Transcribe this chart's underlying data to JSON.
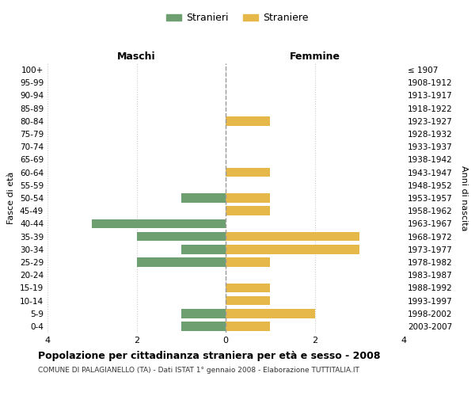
{
  "age_groups": [
    "100+",
    "95-99",
    "90-94",
    "85-89",
    "80-84",
    "75-79",
    "70-74",
    "65-69",
    "60-64",
    "55-59",
    "50-54",
    "45-49",
    "40-44",
    "35-39",
    "30-34",
    "25-29",
    "20-24",
    "15-19",
    "10-14",
    "5-9",
    "0-4"
  ],
  "birth_years": [
    "≤ 1907",
    "1908-1912",
    "1913-1917",
    "1918-1922",
    "1923-1927",
    "1928-1932",
    "1933-1937",
    "1938-1942",
    "1943-1947",
    "1948-1952",
    "1953-1957",
    "1958-1962",
    "1963-1967",
    "1968-1972",
    "1973-1977",
    "1978-1982",
    "1983-1987",
    "1988-1992",
    "1993-1997",
    "1998-2002",
    "2003-2007"
  ],
  "maschi": [
    0,
    0,
    0,
    0,
    0,
    0,
    0,
    0,
    0,
    0,
    1,
    0,
    3,
    2,
    1,
    2,
    0,
    0,
    0,
    1,
    1
  ],
  "femmine": [
    0,
    0,
    0,
    0,
    1,
    0,
    0,
    0,
    1,
    0,
    1,
    1,
    0,
    3,
    3,
    1,
    0,
    1,
    1,
    2,
    1
  ],
  "male_color": "#6d9f71",
  "female_color": "#e6b84a",
  "title": "Popolazione per cittadinanza straniera per età e sesso - 2008",
  "subtitle": "COMUNE DI PALAGIANELLO (TA) - Dati ISTAT 1° gennaio 2008 - Elaborazione TUTTITALIA.IT",
  "xlabel_left": "Maschi",
  "xlabel_right": "Femmine",
  "ylabel_left": "Fasce di età",
  "ylabel_right": "Anni di nascita",
  "legend_male": "Stranieri",
  "legend_female": "Straniere",
  "xlim": 4,
  "background_color": "#ffffff",
  "grid_color": "#cccccc",
  "center_line_color": "#999999"
}
